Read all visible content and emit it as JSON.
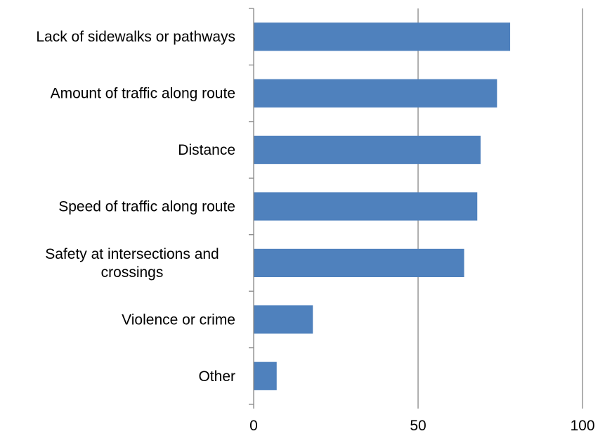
{
  "chart_data": {
    "type": "bar",
    "orientation": "horizontal",
    "title": "",
    "xlabel": "",
    "ylabel": "",
    "categories": [
      [
        "Lack of sidewalks or pathways"
      ],
      [
        "Amount of traffic along route"
      ],
      [
        "Distance"
      ],
      [
        "Speed of traffic along route"
      ],
      [
        "Safety at intersections and",
        "crossings"
      ],
      [
        "Violence or crime"
      ],
      [
        "Other"
      ]
    ],
    "values": [
      78,
      74,
      69,
      68,
      64,
      18,
      7
    ],
    "xlim": [
      0,
      100
    ],
    "x_ticks": [
      "0",
      "50",
      "100"
    ],
    "grid": "vertical",
    "legend": "none",
    "bar_color": "#4F81BD",
    "gridline_color": "#868686"
  }
}
